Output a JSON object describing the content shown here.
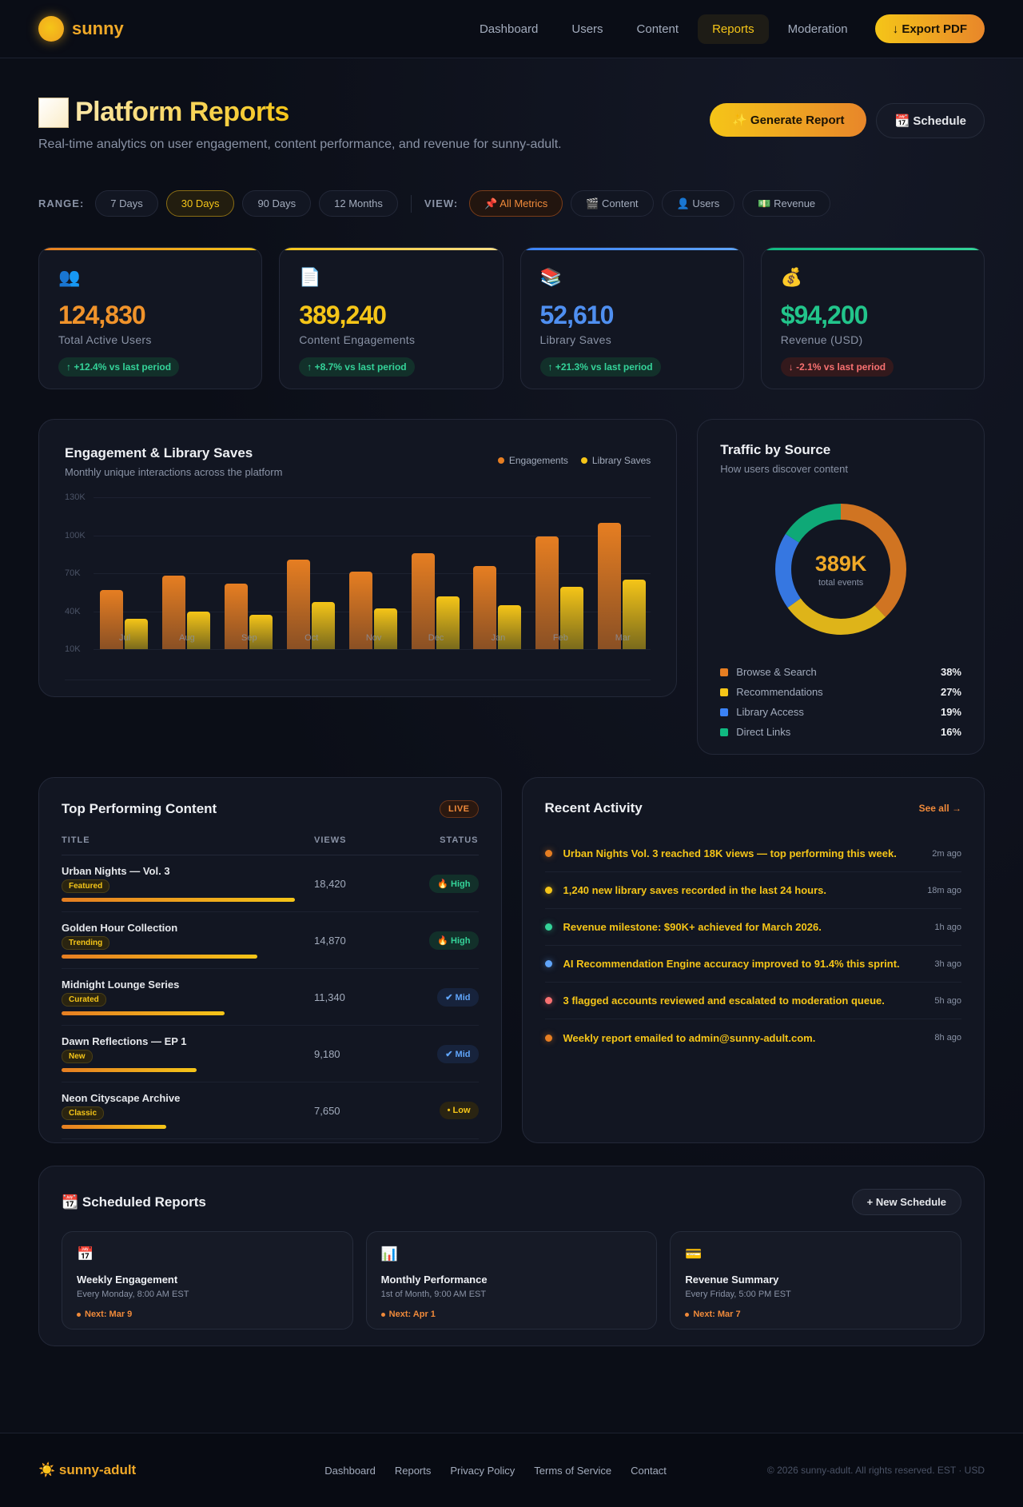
{
  "nav": {
    "brand": "sunny",
    "links": [
      "Dashboard",
      "Users",
      "Content",
      "Reports",
      "Moderation"
    ],
    "active": "Reports",
    "export_label": "↓ Export PDF"
  },
  "header": {
    "title": "Platform Reports",
    "subtitle": "Real-time analytics on user engagement, content performance, and revenue for sunny-adult.",
    "generate_label": "✨ Generate Report",
    "schedule_label": "📆 Schedule"
  },
  "filters": {
    "range_label": "RANGE:",
    "ranges": [
      "7 Days",
      "30 Days",
      "90 Days",
      "12 Months"
    ],
    "active_range": "30 Days",
    "view_label": "VIEW:",
    "views": [
      "📌 All Metrics",
      "🎬 Content",
      "👤 Users",
      "💵 Revenue"
    ],
    "active_view": "📌 All Metrics"
  },
  "stats": [
    {
      "icon": "👥",
      "value": "124,830",
      "label": "Total Active Users",
      "delta": "↑ +12.4% vs last period",
      "trend": "up",
      "color": "#f0932b",
      "bar": "linear-gradient(90deg,#e67e22,#f5c518)"
    },
    {
      "icon": "📄",
      "value": "389,240",
      "label": "Content Engagements",
      "delta": "↑ +8.7% vs last period",
      "trend": "up",
      "color": "#f5c518",
      "bar": "linear-gradient(90deg,#f5c518,#fbe08a)"
    },
    {
      "icon": "📚",
      "value": "52,610",
      "label": "Library Saves",
      "delta": "↑ +21.3% vs last period",
      "trend": "up",
      "color": "#4f8ff0",
      "bar": "linear-gradient(90deg,#3b82f6,#60a5fa)"
    },
    {
      "icon": "💰",
      "value": "$94,200",
      "label": "Revenue (USD)",
      "delta": "↓ -2.1% vs last period",
      "trend": "down",
      "color": "#22c58b",
      "bar": "linear-gradient(90deg,#10b981,#34d399)"
    }
  ],
  "engagement_panel": {
    "title": "Engagement & Library Saves",
    "subtitle": "Monthly unique interactions across the platform",
    "legend": [
      "Engagements",
      "Library Saves"
    ]
  },
  "traffic_panel": {
    "title": "Traffic by Source",
    "subtitle": "How users discover content",
    "center_value": "389K",
    "center_label": "total events",
    "sources": [
      {
        "name": "Browse & Search",
        "pct": "38%",
        "color": "#e67e22"
      },
      {
        "name": "Recommendations",
        "pct": "27%",
        "color": "#f5c518"
      },
      {
        "name": "Library Access",
        "pct": "19%",
        "color": "#3b82f6"
      },
      {
        "name": "Direct Links",
        "pct": "16%",
        "color": "#10b981"
      }
    ]
  },
  "chart_data": [
    {
      "type": "bar",
      "title": "Engagement & Library Saves",
      "subtitle": "Monthly unique interactions across the platform",
      "categories": [
        "Jul",
        "Aug",
        "Sep",
        "Oct",
        "Nov",
        "Dec",
        "Jan",
        "Feb",
        "Mar"
      ],
      "series": [
        {
          "name": "Engagements",
          "color": "#e67e22",
          "values": [
            57,
            68,
            62,
            81,
            71,
            86,
            76,
            99,
            110
          ]
        },
        {
          "name": "Library Saves",
          "color": "#f5c518",
          "values": [
            34,
            40,
            37,
            47,
            42,
            52,
            45,
            59,
            65
          ]
        }
      ],
      "yticks": [
        "130K",
        "100K",
        "70K",
        "40K",
        "10K"
      ],
      "ylim": [
        10,
        130
      ],
      "yunit": "K",
      "xlabel": "",
      "ylabel": "",
      "grid": true,
      "legend_position": "top-right"
    },
    {
      "type": "pie",
      "title": "Traffic by Source",
      "subtitle": "How users discover content",
      "categories": [
        "Browse & Search",
        "Recommendations",
        "Library Access",
        "Direct Links"
      ],
      "values": [
        38,
        27,
        19,
        16
      ],
      "center_text": "389K total events",
      "donut": true
    }
  ],
  "top_content": {
    "title": "Top Performing Content",
    "badge": "LIVE",
    "columns": [
      "TITLE",
      "VIEWS",
      "STATUS"
    ],
    "rows": [
      {
        "title": "Urban Nights — Vol. 3",
        "tag": "Featured",
        "views": "18,420",
        "status": "🔥 High",
        "level": "high",
        "bar": 100
      },
      {
        "title": "Golden Hour Collection",
        "tag": "Trending",
        "views": "14,870",
        "status": "🔥 High",
        "level": "high",
        "bar": 84
      },
      {
        "title": "Midnight Lounge Series",
        "tag": "Curated",
        "views": "11,340",
        "status": "✔ Mid",
        "level": "mid",
        "bar": 70
      },
      {
        "title": "Dawn Reflections — EP 1",
        "tag": "New",
        "views": "9,180",
        "status": "✔ Mid",
        "level": "mid",
        "bar": 58
      },
      {
        "title": "Neon Cityscape Archive",
        "tag": "Classic",
        "views": "7,650",
        "status": "• Low",
        "level": "low",
        "bar": 45
      }
    ]
  },
  "activity": {
    "title": "Recent Activity",
    "see_all": "See all →",
    "items": [
      {
        "text": "Urban Nights Vol. 3 reached 18K views — top performing this week.",
        "time": "2m ago",
        "color": "#e67e22"
      },
      {
        "text": "1,240 new library saves recorded in the last 24 hours.",
        "time": "18m ago",
        "color": "#f5c518"
      },
      {
        "text": "Revenue milestone: $90K+ achieved for March 2026.",
        "time": "1h ago",
        "color": "#34d399"
      },
      {
        "text": "AI Recommendation Engine accuracy improved to 91.4% this sprint.",
        "time": "3h ago",
        "color": "#60a5fa"
      },
      {
        "text": "3 flagged accounts reviewed and escalated to moderation queue.",
        "time": "5h ago",
        "color": "#f87171"
      },
      {
        "text": "Weekly report emailed to admin@sunny-adult.com.",
        "time": "8h ago",
        "color": "#e67e22"
      }
    ]
  },
  "scheduled": {
    "title": "📆 Scheduled Reports",
    "new_label": "+ New Schedule",
    "items": [
      {
        "icon": "📅",
        "title": "Weekly Engagement",
        "when": "Every Monday, 8:00 AM EST",
        "next": "Next: Mar 9"
      },
      {
        "icon": "📊",
        "title": "Monthly Performance",
        "when": "1st of Month, 9:00 AM EST",
        "next": "Next: Apr 1"
      },
      {
        "icon": "💳",
        "title": "Revenue Summary",
        "when": "Every Friday, 5:00 PM EST",
        "next": "Next: Mar 7"
      }
    ]
  },
  "footer": {
    "brand": "☀️ sunny-adult",
    "links": [
      "Dashboard",
      "Reports",
      "Privacy Policy",
      "Terms of Service",
      "Contact"
    ],
    "copyright": "© 2026 sunny-adult. All rights reserved. EST · USD"
  }
}
